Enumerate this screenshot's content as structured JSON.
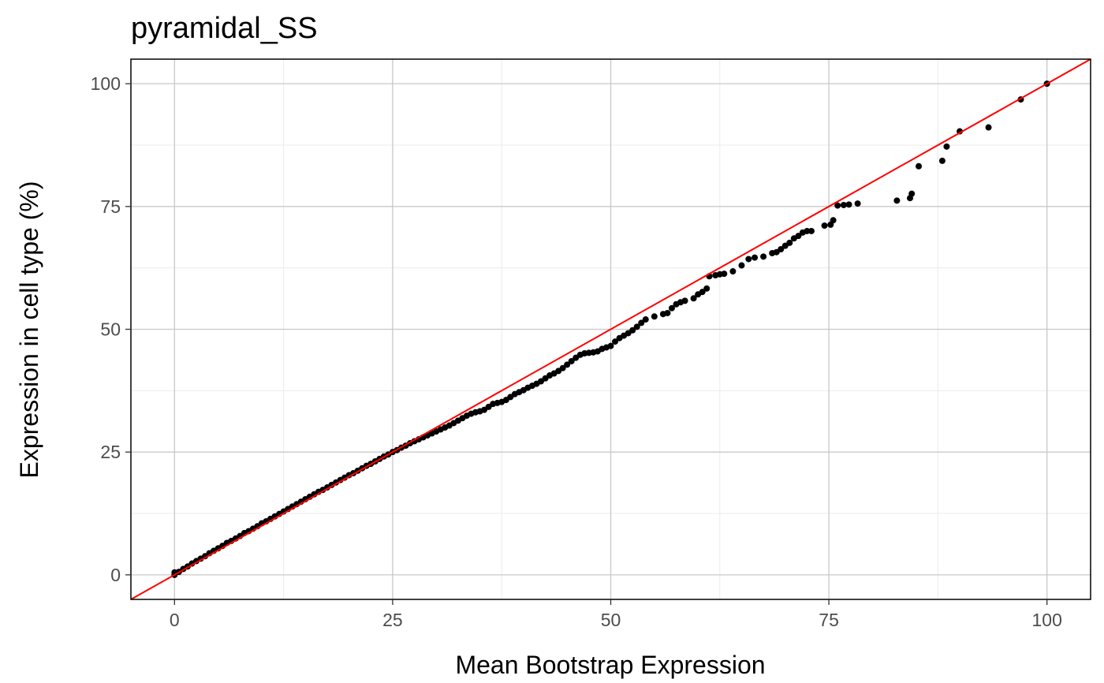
{
  "chart_data": {
    "type": "scatter",
    "title": "pyramidal_SS",
    "xlabel": "Mean Bootstrap Expression",
    "ylabel": "Expression in cell type (%)",
    "xlim": [
      -5,
      105
    ],
    "ylim": [
      -5,
      105
    ],
    "xticks": [
      0,
      25,
      50,
      75,
      100
    ],
    "yticks": [
      0,
      25,
      50,
      75,
      100
    ],
    "grid": true,
    "reference_line": {
      "slope": 1,
      "intercept": 0,
      "color": "#ff0000"
    },
    "point_color": "#000000",
    "series": [
      {
        "points": [
          [
            0,
            0
          ],
          [
            0,
            0.5
          ],
          [
            0.5,
            0.6
          ],
          [
            1,
            1.2
          ],
          [
            1.5,
            1.7
          ],
          [
            2,
            2.3
          ],
          [
            2.5,
            2.8
          ],
          [
            3,
            3.3
          ],
          [
            3.5,
            3.8
          ],
          [
            4,
            4.4
          ],
          [
            4.5,
            4.9
          ],
          [
            5,
            5.4
          ],
          [
            5.5,
            5.9
          ],
          [
            6,
            6.5
          ],
          [
            6.5,
            6.9
          ],
          [
            7,
            7.4
          ],
          [
            7.5,
            7.9
          ],
          [
            8,
            8.5
          ],
          [
            8.5,
            8.9
          ],
          [
            9,
            9.4
          ],
          [
            9.5,
            9.9
          ],
          [
            10,
            10.5
          ],
          [
            10.5,
            10.9
          ],
          [
            11,
            11.4
          ],
          [
            11.5,
            11.9
          ],
          [
            12,
            12.4
          ],
          [
            12.5,
            12.9
          ],
          [
            13,
            13.4
          ],
          [
            13.5,
            13.9
          ],
          [
            14,
            14.4
          ],
          [
            14.5,
            14.9
          ],
          [
            15,
            15.4
          ],
          [
            15.5,
            15.9
          ],
          [
            16,
            16.4
          ],
          [
            16.5,
            16.9
          ],
          [
            17,
            17.3
          ],
          [
            17.5,
            17.8
          ],
          [
            18,
            18.3
          ],
          [
            18.5,
            18.8
          ],
          [
            19,
            19.3
          ],
          [
            19.5,
            19.8
          ],
          [
            20,
            20.3
          ],
          [
            20.5,
            20.7
          ],
          [
            21,
            21.2
          ],
          [
            21.5,
            21.7
          ],
          [
            22,
            22.2
          ],
          [
            22.5,
            22.6
          ],
          [
            23,
            23.1
          ],
          [
            23.5,
            23.6
          ],
          [
            24,
            24.1
          ],
          [
            24.5,
            24.5
          ],
          [
            25,
            25
          ],
          [
            25.5,
            25.4
          ],
          [
            26,
            25.9
          ],
          [
            26.5,
            26.3
          ],
          [
            27,
            26.8
          ],
          [
            27.5,
            27.2
          ],
          [
            28,
            27.6
          ],
          [
            28.5,
            28
          ],
          [
            29,
            28.4
          ],
          [
            29.5,
            28.8
          ],
          [
            30,
            29.2
          ],
          [
            30.5,
            29.6
          ],
          [
            31,
            30
          ],
          [
            31.5,
            30.4
          ],
          [
            32,
            30.9
          ],
          [
            32.5,
            31.4
          ],
          [
            33,
            31.9
          ],
          [
            33.5,
            32.4
          ],
          [
            34,
            32.8
          ],
          [
            34.5,
            33.1
          ],
          [
            35,
            33.3
          ],
          [
            35.5,
            33.6
          ],
          [
            36,
            34.2
          ],
          [
            36.5,
            34.8
          ],
          [
            37,
            35
          ],
          [
            37.5,
            35.2
          ],
          [
            38,
            35.6
          ],
          [
            38.5,
            36.2
          ],
          [
            39,
            36.8
          ],
          [
            39.5,
            37.2
          ],
          [
            40,
            37.6
          ],
          [
            40.5,
            38.1
          ],
          [
            41,
            38.5
          ],
          [
            41.5,
            38.9
          ],
          [
            42,
            39.4
          ],
          [
            42.5,
            40
          ],
          [
            43,
            40.6
          ],
          [
            43.5,
            41
          ],
          [
            44,
            41.5
          ],
          [
            44.5,
            42.1
          ],
          [
            45,
            42.8
          ],
          [
            45.5,
            43.5
          ],
          [
            46,
            44.2
          ],
          [
            46.5,
            44.8
          ],
          [
            47,
            45.1
          ],
          [
            47.5,
            45.2
          ],
          [
            48,
            45.3
          ],
          [
            48.5,
            45.5
          ],
          [
            49,
            46
          ],
          [
            49.5,
            46.3
          ],
          [
            50,
            46.6
          ],
          [
            50.5,
            47.5
          ],
          [
            51,
            48.2
          ],
          [
            51.5,
            48.7
          ],
          [
            52,
            49.2
          ],
          [
            52.5,
            49.8
          ],
          [
            53,
            50.5
          ],
          [
            53.5,
            51.3
          ],
          [
            54,
            52
          ],
          [
            55,
            52.6
          ],
          [
            56,
            53.1
          ],
          [
            56.5,
            53.3
          ],
          [
            57,
            54.3
          ],
          [
            57.5,
            55.1
          ],
          [
            58,
            55.5
          ],
          [
            58.5,
            55.8
          ],
          [
            59.5,
            56.3
          ],
          [
            60,
            57.1
          ],
          [
            60.5,
            57.6
          ],
          [
            61,
            58.3
          ],
          [
            61.3,
            60.8
          ],
          [
            62,
            61
          ],
          [
            62.5,
            61.2
          ],
          [
            63,
            61.3
          ],
          [
            64,
            61.8
          ],
          [
            65,
            63
          ],
          [
            65.8,
            64.3
          ],
          [
            66.5,
            64.6
          ],
          [
            67.5,
            64.8
          ],
          [
            68.5,
            65.5
          ],
          [
            69,
            65.7
          ],
          [
            69.5,
            66.3
          ],
          [
            70,
            67
          ],
          [
            70.5,
            67.6
          ],
          [
            71,
            68.5
          ],
          [
            71.5,
            69
          ],
          [
            72,
            69.7
          ],
          [
            72.5,
            70
          ],
          [
            73,
            70
          ],
          [
            74.5,
            71.1
          ],
          [
            75.2,
            71.3
          ],
          [
            75.5,
            72.2
          ],
          [
            76,
            75.2
          ],
          [
            76.7,
            75.3
          ],
          [
            77.3,
            75.4
          ],
          [
            78.3,
            75.6
          ],
          [
            82.8,
            76.2
          ],
          [
            84.3,
            76.7
          ],
          [
            84.5,
            77.6
          ],
          [
            85.3,
            83.2
          ],
          [
            88,
            84.3
          ],
          [
            88.5,
            87.2
          ],
          [
            90,
            90.3
          ],
          [
            93.3,
            91.1
          ],
          [
            97,
            96.8
          ],
          [
            100,
            100
          ]
        ]
      }
    ]
  }
}
